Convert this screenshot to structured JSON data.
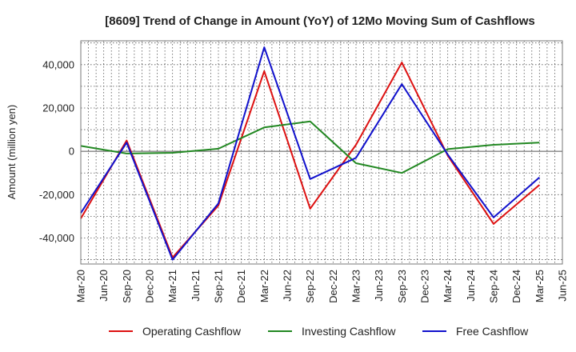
{
  "chart_data": {
    "type": "line",
    "title": "[8609]  Trend of Change in Amount (YoY) of 12Mo Moving Sum of Cashflows",
    "xlabel": "",
    "ylabel": "Amount (million yen)",
    "ylim": [
      -52000,
      51000
    ],
    "yticks": [
      -40000,
      -20000,
      0,
      20000,
      40000
    ],
    "ytick_labels": [
      "-40,000",
      "-20,000",
      "0",
      "20,000",
      "40,000"
    ],
    "categories": [
      "Mar-20",
      "Jun-20",
      "Sep-20",
      "Dec-20",
      "Mar-21",
      "Jun-21",
      "Sep-21",
      "Dec-21",
      "Mar-22",
      "Jun-22",
      "Sep-22",
      "Dec-22",
      "Mar-23",
      "Jun-23",
      "Sep-23",
      "Dec-23",
      "Mar-24",
      "Jun-24",
      "Sep-24",
      "Dec-24",
      "Mar-25",
      "Jun-25"
    ],
    "grid": true,
    "legend_position": "bottom",
    "series": [
      {
        "name": "Operating Cashflow",
        "color": "#dd1111",
        "points": [
          [
            0,
            -31000
          ],
          [
            2,
            5000
          ],
          [
            4,
            -49000
          ],
          [
            6,
            -25000
          ],
          [
            8,
            37000
          ],
          [
            10,
            -26500
          ],
          [
            12,
            3000
          ],
          [
            14,
            41000
          ],
          [
            16,
            -2000
          ],
          [
            18,
            -33500
          ],
          [
            20,
            -15500
          ]
        ]
      },
      {
        "name": "Investing Cashflow",
        "color": "#228822",
        "points": [
          [
            0,
            2500
          ],
          [
            2,
            -1000
          ],
          [
            4,
            -700
          ],
          [
            6,
            1200
          ],
          [
            8,
            11000
          ],
          [
            10,
            13800
          ],
          [
            12,
            -5500
          ],
          [
            14,
            -10000
          ],
          [
            16,
            1000
          ],
          [
            18,
            3000
          ],
          [
            20,
            4000
          ]
        ]
      },
      {
        "name": "Free Cashflow",
        "color": "#1111cc",
        "points": [
          [
            0,
            -28500
          ],
          [
            2,
            4000
          ],
          [
            4,
            -50000
          ],
          [
            6,
            -24000
          ],
          [
            8,
            48000
          ],
          [
            10,
            -12800
          ],
          [
            12,
            -3000
          ],
          [
            14,
            31000
          ],
          [
            16,
            -1500
          ],
          [
            18,
            -30500
          ],
          [
            20,
            -12000
          ]
        ]
      }
    ]
  }
}
